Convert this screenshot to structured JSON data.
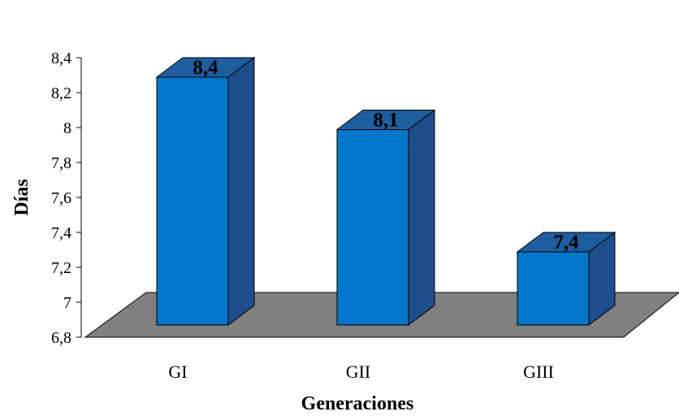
{
  "chart_data": {
    "type": "bar",
    "categories": [
      "GI",
      "GII",
      "GIII"
    ],
    "values": [
      8.4,
      8.1,
      7.4
    ],
    "data_labels": [
      "8,4",
      "8,1",
      "7,4"
    ],
    "xlabel": "Generaciones",
    "ylabel": "Días",
    "ylim": [
      6.8,
      8.4
    ],
    "yticks": [
      6.8,
      7.0,
      7.2,
      7.4,
      7.6,
      7.8,
      8.0,
      8.2,
      8.4
    ],
    "ytick_labels": [
      "6,8",
      "7",
      "7,2",
      "7,4",
      "7,6",
      "7,8",
      "8",
      "8,2",
      "8,4"
    ],
    "style": "3d-column",
    "grid": false,
    "legend": "none",
    "colors": {
      "bar_front": "#0077C8",
      "bar_side": "#1F4E8C",
      "bar_top": "#1E5EA0",
      "floor": "#808080"
    }
  }
}
